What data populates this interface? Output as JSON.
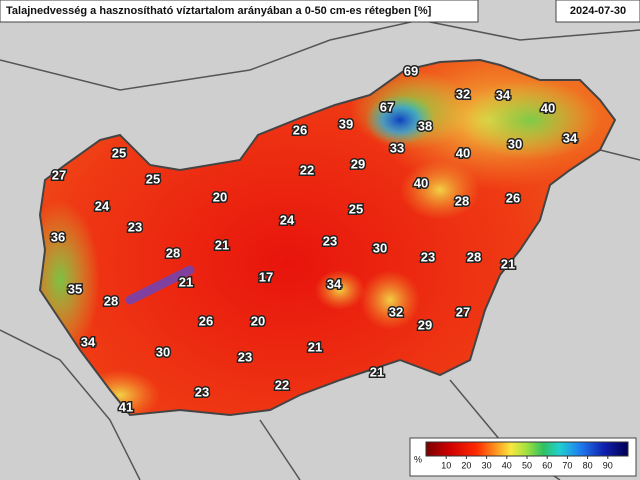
{
  "header": {
    "title": "Talajnedvesség a hasznosítható víztartalom arányában a 0-50 cm-es rétegben [%]",
    "date": "2024-07-30"
  },
  "stations": [
    69,
    32,
    34,
    40,
    67,
    39,
    26,
    38,
    30,
    34,
    33,
    40,
    25,
    22,
    29,
    27,
    25,
    20,
    40,
    28,
    26,
    24,
    23,
    24,
    25,
    36,
    21,
    23,
    28,
    30,
    23,
    28,
    21,
    17,
    21,
    34,
    35,
    28,
    32,
    27,
    26,
    20,
    29,
    34,
    30,
    21,
    23,
    21,
    22,
    23,
    41
  ],
  "legend": {
    "unit": "%",
    "ticks": [
      10,
      20,
      30,
      40,
      50,
      60,
      70,
      80,
      90
    ]
  }
}
